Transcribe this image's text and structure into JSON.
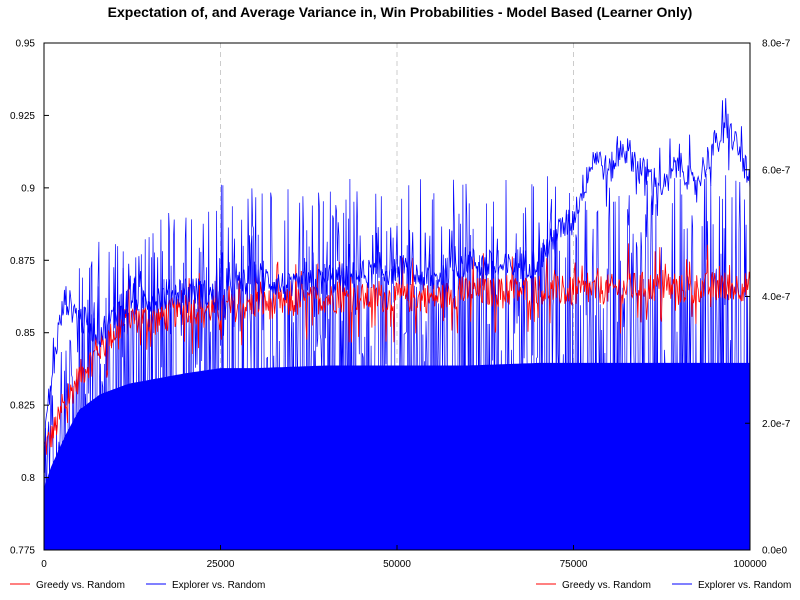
{
  "chart_data": {
    "type": "line",
    "title": "Expectation of, and Average Variance in, Win Probabilities - Model Based (Learner Only)",
    "xlim": [
      0,
      100000
    ],
    "ylim": [
      0.775,
      0.95
    ],
    "y2lim": [
      0,
      8e-07
    ],
    "x_ticks": [
      {
        "value": 0,
        "label": "0"
      },
      {
        "value": 25000,
        "label": "25000"
      },
      {
        "value": 50000,
        "label": "50000"
      },
      {
        "value": 75000,
        "label": "75000"
      },
      {
        "value": 100000,
        "label": "100000"
      }
    ],
    "y_ticks": [
      {
        "value": 0.775,
        "label": "0.775"
      },
      {
        "value": 0.8,
        "label": "0.8"
      },
      {
        "value": 0.825,
        "label": "0.825"
      },
      {
        "value": 0.85,
        "label": "0.85"
      },
      {
        "value": 0.875,
        "label": "0.875"
      },
      {
        "value": 0.9,
        "label": "0.9"
      },
      {
        "value": 0.925,
        "label": "0.925"
      },
      {
        "value": 0.95,
        "label": "0.95"
      }
    ],
    "y2_ticks": [
      {
        "value": 0,
        "label": "0.0e0"
      },
      {
        "value": 2e-07,
        "label": "2.0e-7"
      },
      {
        "value": 4e-07,
        "label": "4.0e-7"
      },
      {
        "value": 6e-07,
        "label": "6.0e-7"
      },
      {
        "value": 8e-07,
        "label": "8.0e-7"
      }
    ],
    "grid": "x-dashed",
    "series": [
      {
        "name": "Greedy vs. Random",
        "axis": "left",
        "color": "#ff0000",
        "x": [
          0,
          1000,
          3000,
          5000,
          8000,
          12000,
          16000,
          20000,
          25000,
          30000,
          35000,
          40000,
          45000,
          50000,
          55000,
          60000,
          65000,
          70000,
          75000,
          80000,
          85000,
          90000,
          95000,
          100000
        ],
        "values": [
          0.81,
          0.814,
          0.825,
          0.835,
          0.845,
          0.855,
          0.855,
          0.858,
          0.858,
          0.86,
          0.86,
          0.862,
          0.862,
          0.862,
          0.862,
          0.864,
          0.864,
          0.865,
          0.864,
          0.865,
          0.866,
          0.865,
          0.866,
          0.866
        ]
      },
      {
        "name": "Explorer vs. Random",
        "axis": "left",
        "color": "#0000ff",
        "x": [
          0,
          1000,
          2000,
          3000,
          5000,
          8000,
          12000,
          16000,
          20000,
          25000,
          30000,
          35000,
          40000,
          45000,
          50000,
          55000,
          60000,
          65000,
          70000,
          73000,
          75000,
          78000,
          80000,
          82000,
          85000,
          88000,
          90000,
          92000,
          95000,
          97000,
          99000,
          100000
        ],
        "values": [
          0.815,
          0.832,
          0.85,
          0.862,
          0.855,
          0.85,
          0.862,
          0.862,
          0.865,
          0.862,
          0.87,
          0.865,
          0.868,
          0.87,
          0.872,
          0.868,
          0.875,
          0.872,
          0.875,
          0.885,
          0.89,
          0.912,
          0.905,
          0.915,
          0.905,
          0.9,
          0.91,
          0.9,
          0.915,
          0.92,
          0.91,
          0.9
        ]
      },
      {
        "name": "Greedy vs. Random",
        "axis": "right",
        "color": "#ff0000",
        "x": [
          0,
          2000,
          5000,
          10000,
          20000,
          30000,
          40000,
          50000,
          60000,
          70000,
          80000,
          90000,
          100000
        ],
        "values": [
          5e-09,
          2e-09,
          1e-09,
          8e-10,
          6e-10,
          5e-10,
          5e-10,
          4e-10,
          4e-10,
          4e-10,
          3e-10,
          3e-10,
          3e-10
        ]
      },
      {
        "name": "Explorer vs. Random",
        "axis": "right",
        "color": "#0000ff",
        "x": [
          0,
          1000,
          3000,
          5000,
          8000,
          12000,
          16000,
          20000,
          25000,
          30000,
          40000,
          50000,
          60000,
          70000,
          80000,
          90000,
          100000
        ],
        "values": [
          1.2e-07,
          1.6e-07,
          2.2e-07,
          2.7e-07,
          3e-07,
          3.2e-07,
          3.3e-07,
          3.4e-07,
          3.5e-07,
          3.5e-07,
          3.55e-07,
          3.55e-07,
          3.55e-07,
          3.6e-07,
          3.6e-07,
          3.6e-07,
          3.6e-07
        ]
      }
    ],
    "legend_left": [
      {
        "name": "Greedy vs. Random",
        "color": "#ff0000"
      },
      {
        "name": "Explorer vs. Random",
        "color": "#0000ff"
      }
    ],
    "legend_right": [
      {
        "name": "Greedy vs. Random",
        "color": "#ff0000"
      },
      {
        "name": "Explorer vs. Random",
        "color": "#0000ff"
      }
    ]
  }
}
